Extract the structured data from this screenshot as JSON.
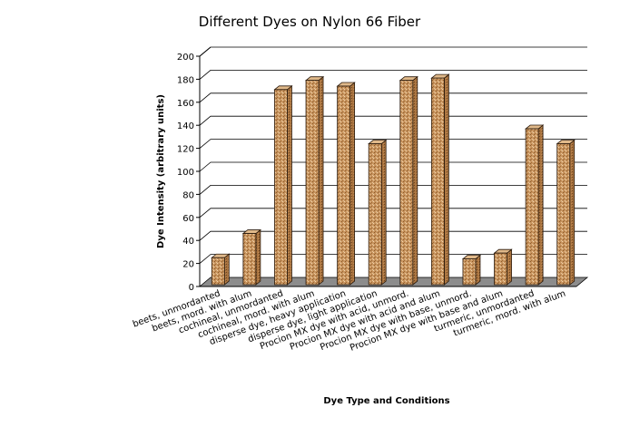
{
  "chart_data": {
    "type": "bar",
    "title": "Different Dyes on Nylon 66 Fiber",
    "xlabel": "Dye Type and Conditions",
    "ylabel": "Dye Intensity (arbitrary units)",
    "ylim": [
      0,
      200
    ],
    "yticks": [
      0,
      20,
      40,
      60,
      80,
      100,
      120,
      140,
      160,
      180,
      200
    ],
    "grid": true,
    "legend": "none",
    "three_d": true,
    "categories": [
      "beets, unmordanted",
      "beets, mord. with alum",
      "cochineal, unmordanted",
      "cochineal, mord. with alum",
      "disperse dye, heavy application",
      "disperse dye, light application",
      "Procion MX dye with acid, unmord.",
      "Procion MX dye with acid and alum",
      "Procion MX dye with base, unmord.",
      "Procion MX dye with base and alum",
      "turmeric, unmordanted",
      "turmeric, mord. with alum"
    ],
    "values": [
      25,
      46,
      171,
      179,
      174,
      124,
      179,
      181,
      24,
      29,
      137,
      124
    ],
    "colors": {
      "bar_fill": "#c9955f",
      "bar_top": "#e0b98a",
      "bar_side": "#a8733f",
      "bar_edge": "#2b1a0c",
      "floor": "#8c8c8c",
      "grid": "#000000"
    }
  }
}
